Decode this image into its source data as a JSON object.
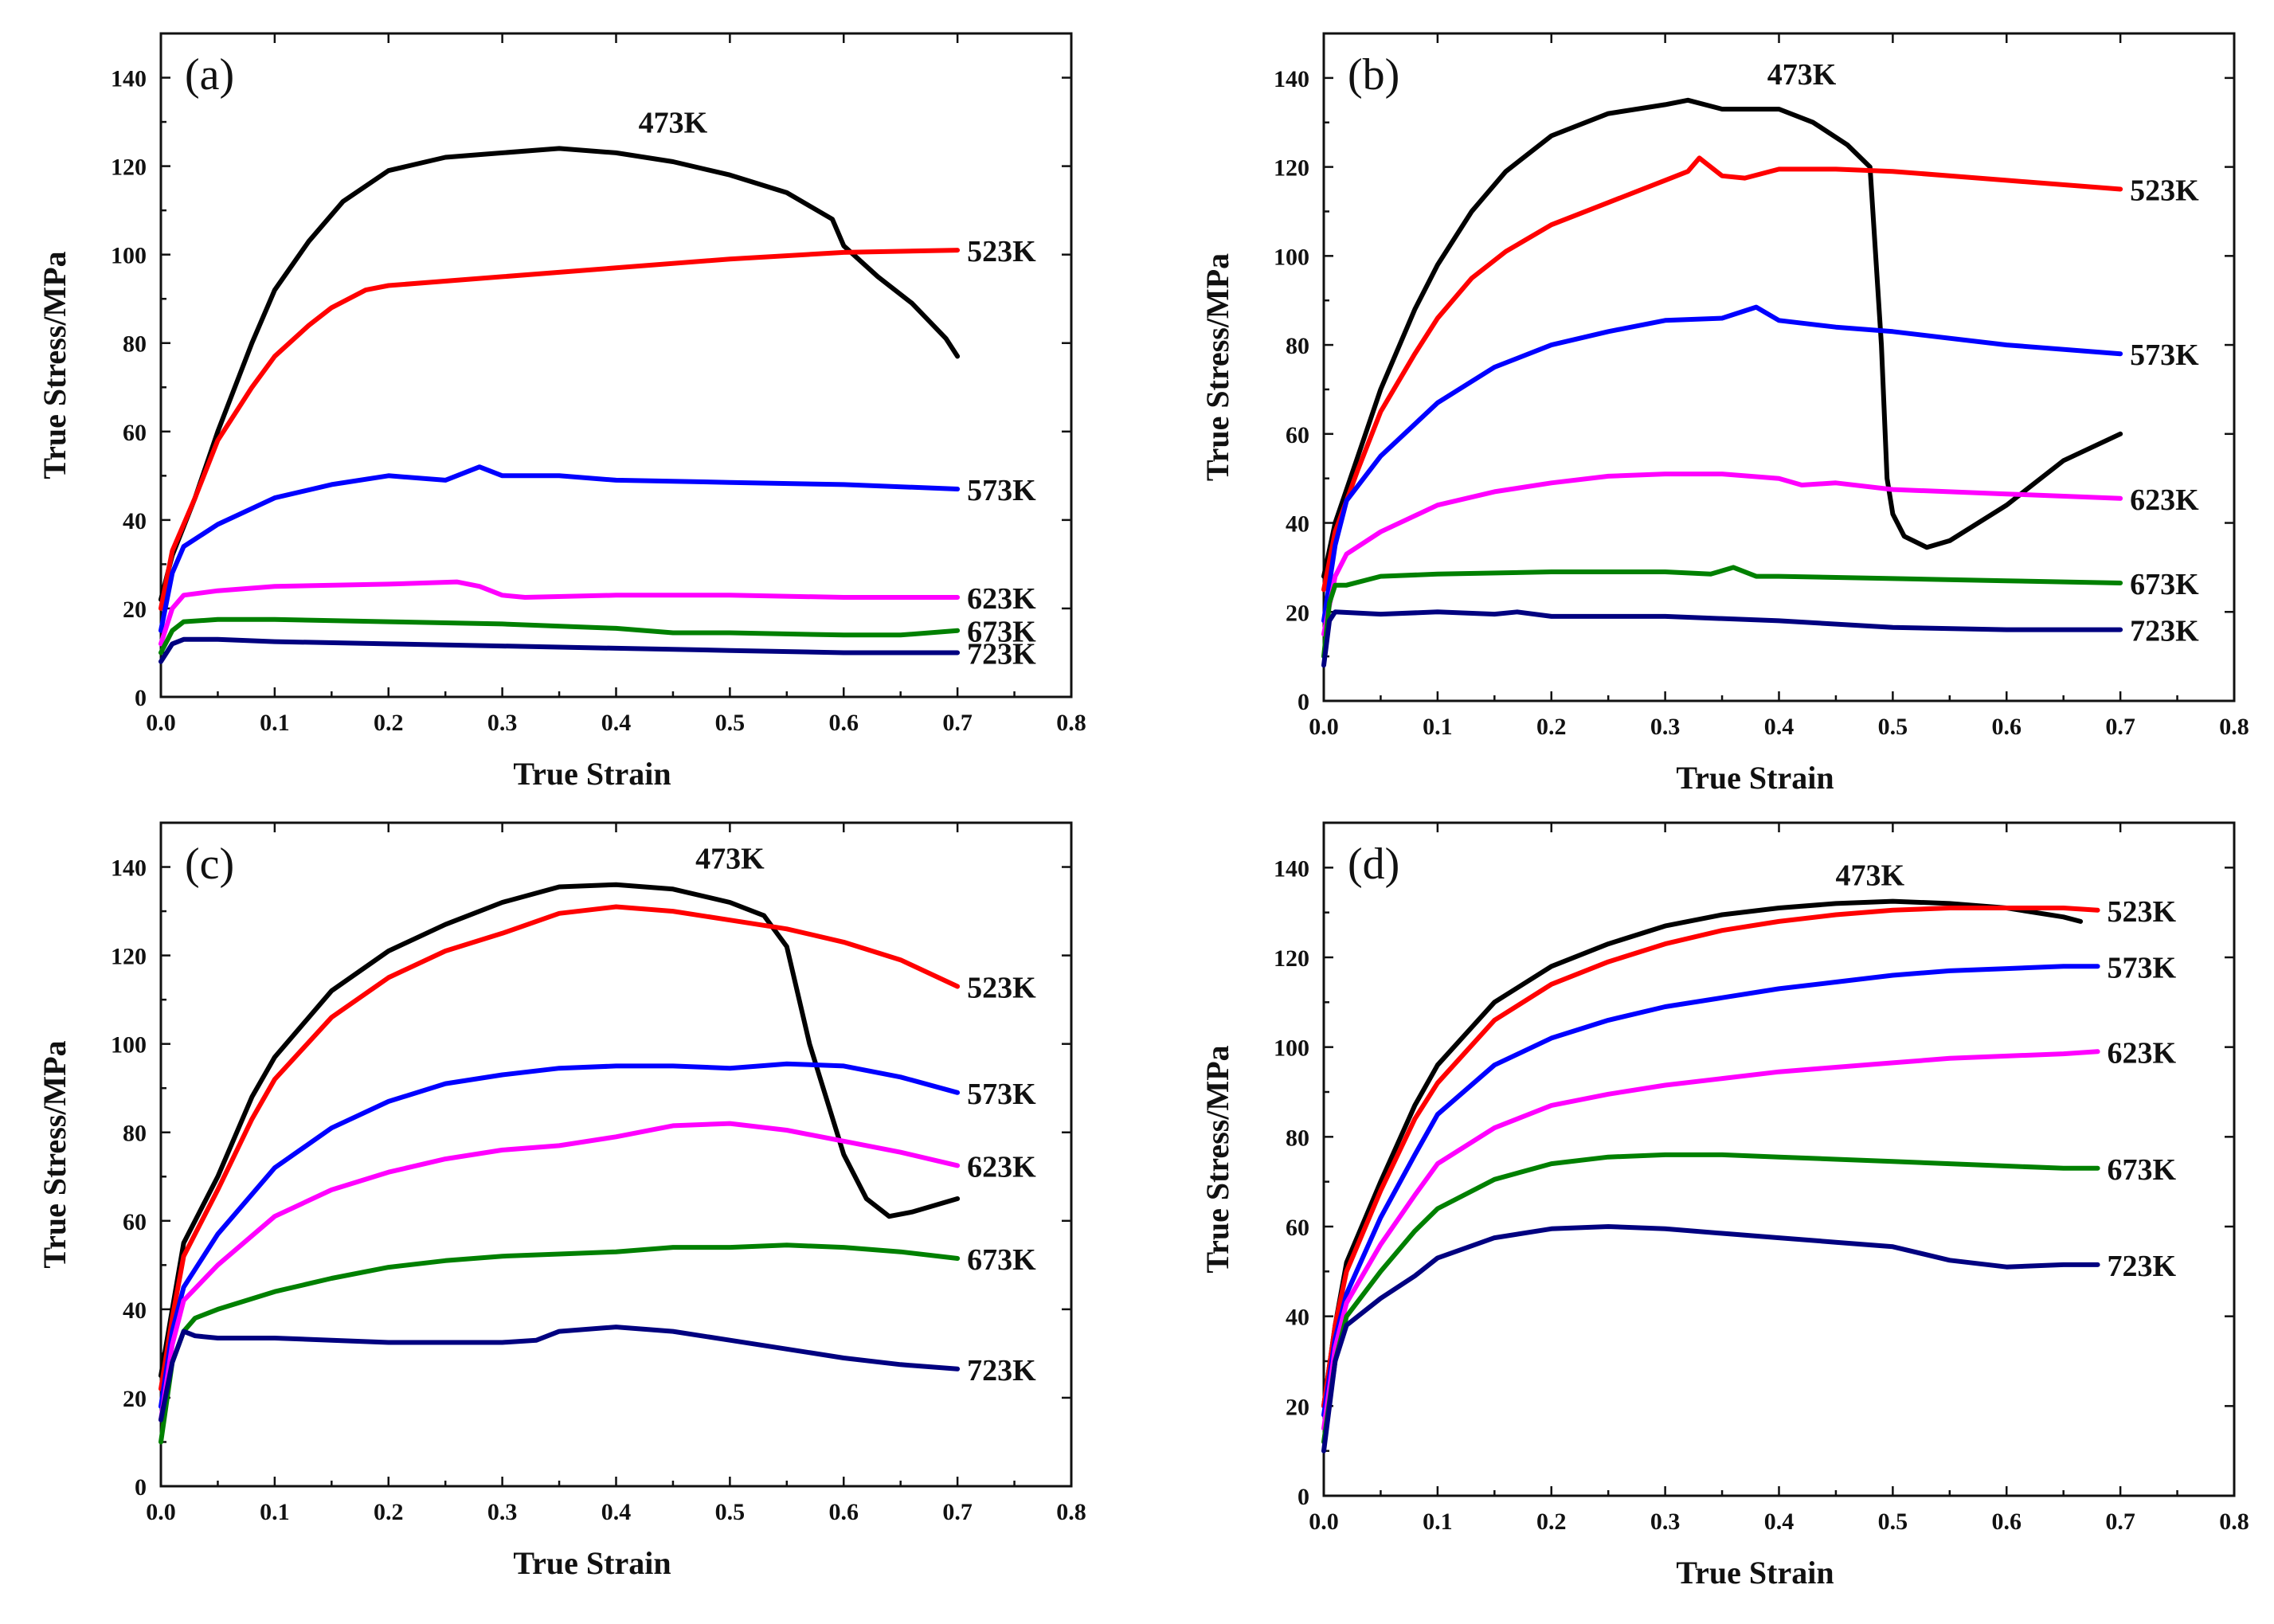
{
  "chart_data": [
    {
      "type": "line",
      "panel_label": "(a)",
      "xlabel": "True Strain",
      "ylabel": "True Stress/MPa",
      "xlim": [
        0,
        0.8
      ],
      "ylim": [
        0,
        150
      ],
      "xticks": [
        "0.0",
        "0.1",
        "0.2",
        "0.3",
        "0.4",
        "0.5",
        "0.6",
        "0.7",
        "0.8"
      ],
      "yticks": [
        "0",
        "20",
        "40",
        "60",
        "80",
        "100",
        "120",
        "140"
      ],
      "series": [
        {
          "name": "473K",
          "color": "#000000",
          "x": [
            0,
            0.01,
            0.03,
            0.05,
            0.08,
            0.1,
            0.13,
            0.16,
            0.2,
            0.25,
            0.3,
            0.35,
            0.4,
            0.45,
            0.5,
            0.55,
            0.59,
            0.6,
            0.63,
            0.66,
            0.69,
            0.7
          ],
          "y": [
            22,
            32,
            45,
            60,
            80,
            92,
            103,
            112,
            119,
            122,
            123,
            124,
            123,
            121,
            118,
            114,
            108,
            102,
            95,
            89,
            81,
            77
          ]
        },
        {
          "name": "523K",
          "color": "#ff0000",
          "x": [
            0,
            0.01,
            0.03,
            0.05,
            0.08,
            0.1,
            0.13,
            0.15,
            0.18,
            0.2,
            0.3,
            0.4,
            0.5,
            0.6,
            0.7
          ],
          "y": [
            20,
            33,
            45,
            58,
            70,
            77,
            84,
            88,
            92,
            93,
            95,
            97,
            99,
            100.5,
            101
          ]
        },
        {
          "name": "573K",
          "color": "#0000ff",
          "x": [
            0,
            0.01,
            0.02,
            0.05,
            0.1,
            0.15,
            0.2,
            0.25,
            0.28,
            0.3,
            0.35,
            0.4,
            0.5,
            0.6,
            0.7
          ],
          "y": [
            15,
            28,
            34,
            39,
            45,
            48,
            50,
            49,
            52,
            50,
            50,
            49,
            48.5,
            48,
            47
          ]
        },
        {
          "name": "623K",
          "color": "#ff00ff",
          "x": [
            0,
            0.01,
            0.02,
            0.05,
            0.1,
            0.2,
            0.26,
            0.28,
            0.3,
            0.32,
            0.4,
            0.5,
            0.6,
            0.7
          ],
          "y": [
            12,
            20,
            23,
            24,
            25,
            25.5,
            26,
            25,
            23,
            22.5,
            23,
            23,
            22.5,
            22.5
          ]
        },
        {
          "name": "673K",
          "color": "#008000",
          "x": [
            0,
            0.01,
            0.02,
            0.05,
            0.1,
            0.2,
            0.3,
            0.4,
            0.45,
            0.5,
            0.6,
            0.65,
            0.7
          ],
          "y": [
            10,
            15,
            17,
            17.5,
            17.5,
            17,
            16.5,
            15.5,
            14.5,
            14.5,
            14,
            14,
            15
          ]
        },
        {
          "name": "723K",
          "color": "#000080",
          "x": [
            0,
            0.01,
            0.02,
            0.05,
            0.1,
            0.2,
            0.3,
            0.4,
            0.5,
            0.6,
            0.7
          ],
          "y": [
            8,
            12,
            13,
            13,
            12.5,
            12,
            11.5,
            11,
            10.5,
            10,
            10
          ]
        }
      ]
    },
    {
      "type": "line",
      "panel_label": "(b)",
      "xlabel": "True Strain",
      "ylabel": "True Stress/MPa",
      "xlim": [
        0,
        0.8
      ],
      "ylim": [
        0,
        150
      ],
      "xticks": [
        "0.0",
        "0.1",
        "0.2",
        "0.3",
        "0.4",
        "0.5",
        "0.6",
        "0.7",
        "0.8"
      ],
      "yticks": [
        "0",
        "20",
        "40",
        "60",
        "80",
        "100",
        "120",
        "140"
      ],
      "series": [
        {
          "name": "473K",
          "color": "#000000",
          "x": [
            0,
            0.01,
            0.03,
            0.05,
            0.08,
            0.1,
            0.13,
            0.16,
            0.2,
            0.25,
            0.3,
            0.32,
            0.35,
            0.4,
            0.43,
            0.46,
            0.48,
            0.49,
            0.495,
            0.5,
            0.51,
            0.53,
            0.55,
            0.6,
            0.65,
            0.7
          ],
          "y": [
            28,
            40,
            55,
            70,
            88,
            98,
            110,
            119,
            127,
            132,
            134,
            135,
            133,
            133,
            130,
            125,
            120,
            80,
            50,
            42,
            37,
            34.5,
            36,
            44,
            54,
            60
          ]
        },
        {
          "name": "523K",
          "color": "#ff0000",
          "x": [
            0,
            0.01,
            0.03,
            0.05,
            0.08,
            0.1,
            0.13,
            0.16,
            0.2,
            0.25,
            0.3,
            0.32,
            0.33,
            0.35,
            0.37,
            0.4,
            0.45,
            0.5,
            0.6,
            0.7
          ],
          "y": [
            25,
            38,
            52,
            65,
            78,
            86,
            95,
            101,
            107,
            112,
            117,
            119,
            122,
            118,
            117.5,
            119.5,
            119.5,
            119,
            117,
            115
          ]
        },
        {
          "name": "573K",
          "color": "#0000ff",
          "x": [
            0,
            0.01,
            0.02,
            0.05,
            0.1,
            0.15,
            0.2,
            0.25,
            0.3,
            0.35,
            0.38,
            0.4,
            0.45,
            0.5,
            0.6,
            0.7
          ],
          "y": [
            18,
            35,
            45,
            55,
            67,
            75,
            80,
            83,
            85.5,
            86,
            88.5,
            85.5,
            84,
            83,
            80,
            78
          ]
        },
        {
          "name": "623K",
          "color": "#ff00ff",
          "x": [
            0,
            0.01,
            0.02,
            0.05,
            0.1,
            0.15,
            0.2,
            0.25,
            0.3,
            0.35,
            0.4,
            0.42,
            0.45,
            0.5,
            0.6,
            0.7
          ],
          "y": [
            15,
            28,
            33,
            38,
            44,
            47,
            49,
            50.5,
            51,
            51,
            50,
            48.5,
            49,
            47.5,
            46.5,
            45.5
          ]
        },
        {
          "name": "673K",
          "color": "#008000",
          "x": [
            0,
            0.005,
            0.01,
            0.02,
            0.05,
            0.1,
            0.2,
            0.3,
            0.34,
            0.36,
            0.38,
            0.4,
            0.5,
            0.6,
            0.7
          ],
          "y": [
            10,
            22,
            26,
            26,
            28,
            28.5,
            29,
            29,
            28.5,
            30,
            28,
            28,
            27.5,
            27,
            26.5
          ]
        },
        {
          "name": "723K",
          "color": "#000080",
          "x": [
            0,
            0.005,
            0.01,
            0.05,
            0.1,
            0.15,
            0.17,
            0.2,
            0.3,
            0.4,
            0.5,
            0.6,
            0.7
          ],
          "y": [
            8,
            18,
            20,
            19.5,
            20,
            19.5,
            20,
            19,
            19,
            18,
            16.5,
            16,
            16
          ]
        }
      ]
    },
    {
      "type": "line",
      "panel_label": "(c)",
      "xlabel": "True Strain",
      "ylabel": "True Stress/MPa",
      "xlim": [
        0,
        0.8
      ],
      "ylim": [
        0,
        150
      ],
      "xticks": [
        "0.0",
        "0.1",
        "0.2",
        "0.3",
        "0.4",
        "0.5",
        "0.6",
        "0.7",
        "0.8"
      ],
      "yticks": [
        "0",
        "20",
        "40",
        "60",
        "80",
        "100",
        "120",
        "140"
      ],
      "series": [
        {
          "name": "473K",
          "color": "#000000",
          "x": [
            0,
            0.01,
            0.02,
            0.05,
            0.08,
            0.1,
            0.15,
            0.2,
            0.25,
            0.3,
            0.35,
            0.4,
            0.45,
            0.5,
            0.53,
            0.55,
            0.57,
            0.6,
            0.62,
            0.64,
            0.66,
            0.7
          ],
          "y": [
            25,
            40,
            55,
            70,
            88,
            97,
            112,
            121,
            127,
            132,
            135.5,
            136,
            135,
            132,
            129,
            122,
            100,
            75,
            65,
            61,
            62,
            65
          ]
        },
        {
          "name": "523K",
          "color": "#ff0000",
          "x": [
            0,
            0.01,
            0.02,
            0.05,
            0.08,
            0.1,
            0.15,
            0.2,
            0.25,
            0.3,
            0.35,
            0.4,
            0.45,
            0.5,
            0.55,
            0.6,
            0.65,
            0.7
          ],
          "y": [
            22,
            38,
            52,
            67,
            83,
            92,
            106,
            115,
            121,
            125,
            129.5,
            131,
            130,
            128,
            126,
            123,
            119,
            113
          ]
        },
        {
          "name": "573K",
          "color": "#0000ff",
          "x": [
            0,
            0.01,
            0.02,
            0.05,
            0.1,
            0.15,
            0.2,
            0.25,
            0.3,
            0.35,
            0.4,
            0.45,
            0.5,
            0.55,
            0.6,
            0.65,
            0.7
          ],
          "y": [
            18,
            35,
            45,
            57,
            72,
            81,
            87,
            91,
            93,
            94.5,
            95,
            95,
            94.5,
            95.5,
            95,
            92.5,
            89
          ]
        },
        {
          "name": "623K",
          "color": "#ff00ff",
          "x": [
            0,
            0.01,
            0.02,
            0.05,
            0.1,
            0.15,
            0.2,
            0.25,
            0.3,
            0.35,
            0.4,
            0.45,
            0.5,
            0.55,
            0.6,
            0.65,
            0.7
          ],
          "y": [
            15,
            32,
            42,
            50,
            61,
            67,
            71,
            74,
            76,
            77,
            79,
            81.5,
            82,
            80.5,
            78,
            75.5,
            72.5
          ]
        },
        {
          "name": "673K",
          "color": "#008000",
          "x": [
            0,
            0.01,
            0.02,
            0.03,
            0.05,
            0.1,
            0.15,
            0.2,
            0.25,
            0.3,
            0.35,
            0.4,
            0.45,
            0.5,
            0.55,
            0.6,
            0.65,
            0.7
          ],
          "y": [
            10,
            28,
            35,
            38,
            40,
            44,
            47,
            49.5,
            51,
            52,
            52.5,
            53,
            54,
            54,
            54.5,
            54,
            53,
            51.5
          ]
        },
        {
          "name": "723K",
          "color": "#000080",
          "x": [
            0,
            0.01,
            0.02,
            0.03,
            0.05,
            0.1,
            0.15,
            0.2,
            0.25,
            0.3,
            0.33,
            0.35,
            0.4,
            0.45,
            0.5,
            0.55,
            0.6,
            0.65,
            0.7
          ],
          "y": [
            15,
            28,
            35,
            34,
            33.5,
            33.5,
            33,
            32.5,
            32.5,
            32.5,
            33,
            35,
            36,
            35,
            33,
            31,
            29,
            27.5,
            26.5
          ]
        }
      ]
    },
    {
      "type": "line",
      "panel_label": "(d)",
      "xlabel": "True Strain",
      "ylabel": "True Stress/MPa",
      "xlim": [
        0,
        0.8
      ],
      "ylim": [
        0,
        150
      ],
      "xticks": [
        "0.0",
        "0.1",
        "0.2",
        "0.3",
        "0.4",
        "0.5",
        "0.6",
        "0.7",
        "0.8"
      ],
      "yticks": [
        "0",
        "20",
        "40",
        "60",
        "80",
        "100",
        "120",
        "140"
      ],
      "series": [
        {
          "name": "473K",
          "color": "#000000",
          "x": [
            0,
            0.01,
            0.02,
            0.05,
            0.08,
            0.1,
            0.15,
            0.2,
            0.25,
            0.3,
            0.35,
            0.4,
            0.45,
            0.5,
            0.55,
            0.6,
            0.65,
            0.665
          ],
          "y": [
            20,
            38,
            52,
            70,
            87,
            96,
            110,
            118,
            123,
            127,
            129.5,
            131,
            132,
            132.5,
            132,
            131,
            129,
            128
          ]
        },
        {
          "name": "523K",
          "color": "#ff0000",
          "x": [
            0,
            0.01,
            0.02,
            0.05,
            0.08,
            0.1,
            0.15,
            0.2,
            0.25,
            0.3,
            0.35,
            0.4,
            0.45,
            0.5,
            0.55,
            0.6,
            0.65,
            0.68
          ],
          "y": [
            20,
            38,
            50,
            68,
            84,
            92,
            106,
            114,
            119,
            123,
            126,
            128,
            129.5,
            130.5,
            131,
            131,
            131,
            130.5
          ]
        },
        {
          "name": "573K",
          "color": "#0000ff",
          "x": [
            0,
            0.01,
            0.02,
            0.05,
            0.08,
            0.1,
            0.15,
            0.2,
            0.25,
            0.3,
            0.35,
            0.4,
            0.45,
            0.5,
            0.55,
            0.6,
            0.65,
            0.68
          ],
          "y": [
            18,
            35,
            45,
            62,
            76,
            85,
            96,
            102,
            106,
            109,
            111,
            113,
            114.5,
            116,
            117,
            117.5,
            118,
            118
          ]
        },
        {
          "name": "623K",
          "color": "#ff00ff",
          "x": [
            0,
            0.01,
            0.02,
            0.05,
            0.08,
            0.1,
            0.15,
            0.2,
            0.25,
            0.3,
            0.35,
            0.4,
            0.45,
            0.5,
            0.55,
            0.6,
            0.65,
            0.68
          ],
          "y": [
            15,
            33,
            43,
            56,
            67,
            74,
            82,
            87,
            89.5,
            91.5,
            93,
            94.5,
            95.5,
            96.5,
            97.5,
            98,
            98.5,
            99
          ]
        },
        {
          "name": "673K",
          "color": "#008000",
          "x": [
            0,
            0.01,
            0.02,
            0.05,
            0.08,
            0.1,
            0.15,
            0.2,
            0.25,
            0.3,
            0.35,
            0.4,
            0.45,
            0.5,
            0.55,
            0.6,
            0.65,
            0.68
          ],
          "y": [
            12,
            30,
            40,
            50,
            59,
            64,
            70.5,
            74,
            75.5,
            76,
            76,
            75.5,
            75,
            74.5,
            74,
            73.5,
            73,
            73
          ]
        },
        {
          "name": "723K",
          "color": "#000080",
          "x": [
            0,
            0.01,
            0.02,
            0.05,
            0.08,
            0.1,
            0.15,
            0.2,
            0.25,
            0.3,
            0.35,
            0.4,
            0.45,
            0.5,
            0.55,
            0.6,
            0.65,
            0.68
          ],
          "y": [
            10,
            30,
            38,
            44,
            49,
            53,
            57.5,
            59.5,
            60,
            59.5,
            58.5,
            57.5,
            56.5,
            55.5,
            52.5,
            51,
            51.5,
            51.5
          ]
        }
      ]
    }
  ]
}
